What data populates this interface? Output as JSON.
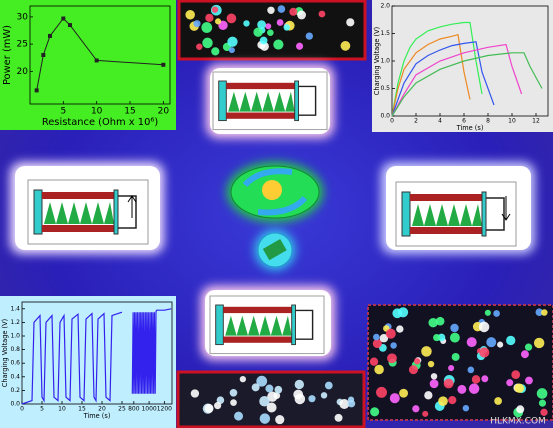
{
  "chart_data": [
    {
      "type": "line",
      "xlabel": "Resistance (Ohm x 10⁶)",
      "ylabel": "Power (mW)",
      "x": [
        1,
        2,
        3,
        5,
        6,
        10,
        20
      ],
      "values": [
        16.5,
        23,
        26.5,
        29.7,
        28.5,
        22,
        21.2
      ],
      "color": "#222222",
      "background": "#44ee22",
      "xlim": [
        0,
        21
      ],
      "xticks": [
        5,
        10,
        15,
        20
      ],
      "ylim": [
        14,
        32
      ],
      "yticks": [
        20,
        25,
        30
      ]
    },
    {
      "type": "line",
      "xlabel": "Time (s)",
      "ylabel": "Charging Voltage (V)",
      "background": "#e8e8e8",
      "xlim": [
        0,
        13
      ],
      "xticks": [
        0,
        2,
        4,
        6,
        8,
        10,
        12
      ],
      "ylim": [
        0,
        2.0
      ],
      "yticks": [
        {
          "value": 0,
          "label": "0.0"
        },
        0.5,
        {
          "value": 1,
          "label": "1.0"
        },
        1.5,
        {
          "value": 2,
          "label": "2.0"
        }
      ],
      "series": [
        {
          "color": "#33ee55",
          "x": [
            0,
            0.5,
            1,
            1.5,
            2,
            3,
            4,
            5,
            6,
            6.5,
            7,
            7.5
          ],
          "values": [
            0,
            0.6,
            1.0,
            1.25,
            1.4,
            1.55,
            1.62,
            1.67,
            1.7,
            1.7,
            1.0,
            0.4
          ]
        },
        {
          "color": "#ee8822",
          "x": [
            0,
            0.5,
            1,
            2,
            3,
            4,
            5,
            5.5,
            6,
            6.5
          ],
          "values": [
            0,
            0.5,
            0.85,
            1.15,
            1.3,
            1.4,
            1.45,
            1.48,
            0.8,
            0.3
          ]
        },
        {
          "color": "#3355ee",
          "x": [
            0,
            1,
            2,
            3,
            4,
            5,
            6,
            7,
            7.5,
            8.5
          ],
          "values": [
            0,
            0.6,
            0.95,
            1.1,
            1.2,
            1.28,
            1.32,
            1.35,
            0.8,
            0.2
          ]
        },
        {
          "color": "#ee44cc",
          "x": [
            0,
            1,
            2,
            4,
            6,
            8,
            9.5,
            10,
            10.8
          ],
          "values": [
            0,
            0.4,
            0.75,
            1.0,
            1.15,
            1.25,
            1.3,
            0.9,
            0.4
          ]
        },
        {
          "color": "#44bb55",
          "x": [
            0,
            1,
            2,
            4,
            6,
            8,
            10,
            11,
            11.5,
            12.5
          ],
          "values": [
            0,
            0.35,
            0.6,
            0.85,
            1.0,
            1.1,
            1.15,
            1.15,
            0.9,
            0.5
          ]
        }
      ]
    },
    {
      "type": "line",
      "xlabel": "Time (s)",
      "ylabel": "Charging Voltage (V)",
      "background": "#bfeeff",
      "xlim": [
        0,
        27
      ],
      "xticks": [
        0,
        5,
        10,
        15,
        20,
        25
      ],
      "x2lim": [
        750,
        1300
      ],
      "x2ticks": [
        800,
        1000,
        1200
      ],
      "ylim": [
        0,
        1.5
      ],
      "yticks": [
        {
          "value": 0,
          "label": "0.0"
        },
        0.2,
        0.4,
        0.6,
        0.8,
        {
          "value": 1,
          "label": "1.0"
        },
        1.2,
        1.4
      ],
      "series": [
        {
          "color": "#3322ee",
          "x": [
            0,
            2.5,
            3,
            4.5,
            5,
            5.5,
            6,
            7.5,
            8,
            9,
            9.5,
            10.5,
            11,
            12,
            12.5,
            14,
            14.5,
            15.5,
            16,
            17.5,
            18,
            18.5,
            19,
            20.5,
            21,
            22,
            22.5,
            25
          ],
          "values": [
            0,
            0.05,
            1.2,
            1.3,
            0.1,
            0.05,
            1.2,
            1.3,
            0.1,
            0.05,
            1.2,
            1.3,
            0.1,
            0.05,
            1.25,
            1.32,
            0.1,
            0.05,
            1.25,
            1.33,
            0.1,
            0.05,
            1.25,
            1.33,
            0.1,
            0.05,
            1.3,
            1.35
          ]
        },
        {
          "color": "#3322ee",
          "axis": "x2",
          "x": [
            780,
            790,
            800,
            810,
            820,
            830,
            840,
            850,
            860,
            870,
            880,
            890,
            900,
            910,
            920,
            930,
            940,
            950,
            960,
            970,
            980,
            990,
            1000,
            1010,
            1020,
            1030,
            1040,
            1050,
            1060,
            1070,
            1080,
            1090,
            1100,
            1200,
            1290
          ],
          "values": [
            0.15,
            1.35,
            0.15,
            1.35,
            0.15,
            1.35,
            0.15,
            1.35,
            0.15,
            1.35,
            0.15,
            1.35,
            0.15,
            1.35,
            0.15,
            1.35,
            0.15,
            1.35,
            0.15,
            1.35,
            0.15,
            1.35,
            0.15,
            1.35,
            0.15,
            1.35,
            0.15,
            1.35,
            0.15,
            1.35,
            0.15,
            1.36,
            1.38,
            1.38,
            1.4
          ]
        }
      ]
    }
  ],
  "watermark": "HLKMX.COM"
}
